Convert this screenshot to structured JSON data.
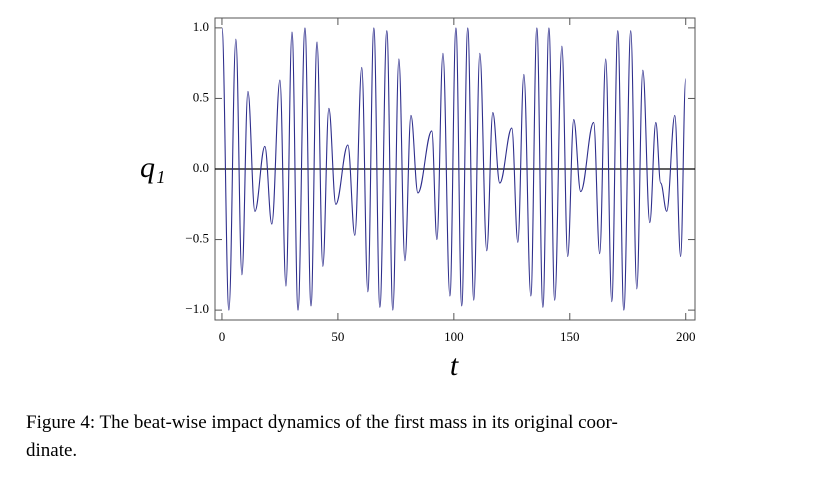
{
  "chart_data": {
    "type": "line",
    "xlabel": "t",
    "ylabel": "q₁",
    "caption": [
      "Figure 4: The beat-wise impact dynamics of the first mass in its original coor-",
      "dinate."
    ],
    "xlim": [
      -3,
      204
    ],
    "ylim": [
      -1.07,
      1.07
    ],
    "xticks": [
      0,
      50,
      100,
      150,
      200
    ],
    "yticks": [
      {
        "value": -1.0,
        "label": "−1.0"
      },
      {
        "value": -0.5,
        "label": "−0.5"
      },
      {
        "value": 0.0,
        "label": "0.0"
      },
      0.5,
      {
        "value": 1.0,
        "label": "1.0"
      }
    ],
    "series": [
      {
        "color": "#2e2e8c",
        "x": [
          0,
          3,
          6,
          8.6,
          11.2,
          14.2,
          18.5,
          21.5,
          25,
          27.6,
          30.2,
          32.8,
          35.8,
          38.4,
          41,
          43.5,
          46.1,
          49.1,
          54.3,
          57.3,
          60.3,
          62.9,
          65.5,
          68.1,
          71.1,
          73.7,
          76.3,
          78.9,
          81.5,
          84.5,
          90.5,
          92.7,
          95.3,
          98.3,
          100.9,
          103.4,
          106,
          108.6,
          111.2,
          114.2,
          116.8,
          119.8,
          125,
          127.6,
          130.2,
          133.2,
          135.8,
          138.4,
          141,
          143.5,
          146.6,
          149.1,
          151.7,
          154.7,
          160.3,
          162.9,
          165.5,
          168.1,
          170.7,
          173.3,
          176.3,
          178.9,
          181.5,
          184.5,
          187.1,
          189.2,
          191.8,
          195.3,
          197.8,
          200
        ],
        "values": [
          1.0,
          -1.0,
          0.92,
          -0.75,
          0.55,
          -0.3,
          0.16,
          -0.39,
          0.63,
          -0.83,
          0.97,
          -1.0,
          1.0,
          -0.97,
          0.9,
          -0.69,
          0.43,
          -0.25,
          0.17,
          -0.47,
          0.72,
          -0.87,
          1.0,
          -0.98,
          0.98,
          -1.0,
          0.78,
          -0.65,
          0.38,
          -0.17,
          0.27,
          -0.5,
          0.82,
          -0.9,
          1.0,
          -0.97,
          1.0,
          -0.93,
          0.82,
          -0.58,
          0.4,
          -0.1,
          0.29,
          -0.52,
          0.67,
          -0.9,
          1.0,
          -0.98,
          1.0,
          -0.93,
          0.87,
          -0.62,
          0.35,
          -0.16,
          0.33,
          -0.6,
          0.78,
          -0.94,
          0.98,
          -1.0,
          0.98,
          -0.85,
          0.7,
          -0.38,
          0.33,
          -0.1,
          -0.3,
          0.38,
          -0.62,
          0.64
        ]
      }
    ]
  }
}
